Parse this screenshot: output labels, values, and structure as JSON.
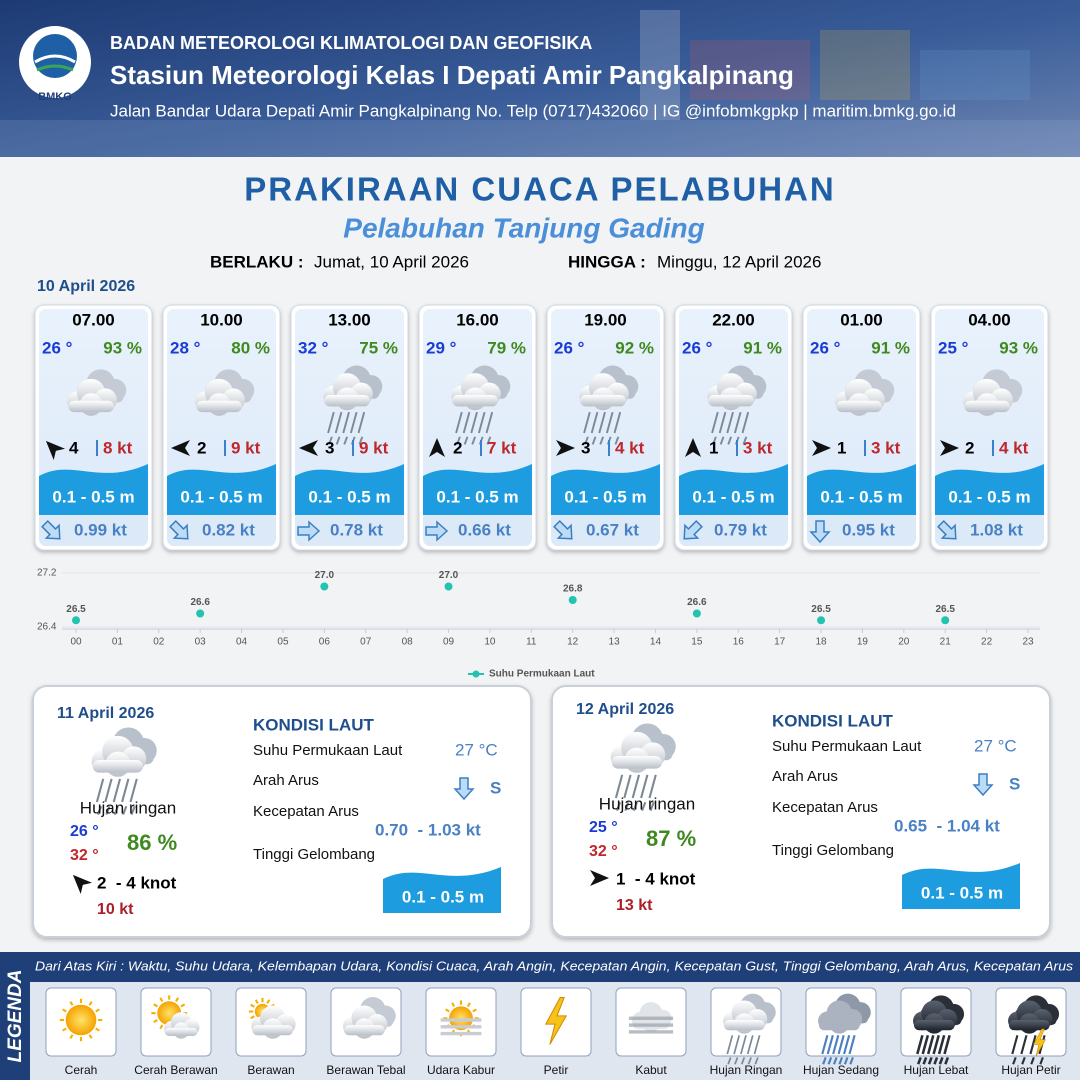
{
  "header": {
    "logo": "BMKG",
    "agency": "BADAN METEOROLOGI KLIMATOLOGI DAN GEOFISIKA",
    "station": "Stasiun Meteorologi Kelas I Depati Amir Pangkalpinang",
    "contact": "Jalan Bandar Udara Depati Amir Pangkalpinang No. Telp (0717)432060 | IG @infobmkgpkp | maritim.bmkg.go.id"
  },
  "title": "PRAKIRAAN CUACA PELABUHAN",
  "subtitle": "Pelabuhan Tanjung Gading",
  "validity": {
    "from_label": "BERLAKU :",
    "from": "Jumat, 10 April 2026",
    "to_label": "HINGGA :",
    "to": "Minggu, 12 April 2026"
  },
  "day1": {
    "date": "10 April 2026",
    "forecasts": [
      {
        "time": "07.00",
        "temp": "26 °",
        "humidity": "93 %",
        "icon": "berawan-tebal",
        "wind_heading": 315,
        "wind_speed": "4",
        "gust": "8 kt",
        "wave": "0.1 - 0.5 m",
        "current_heading": 135,
        "current_speed": "0.99 kt"
      },
      {
        "time": "10.00",
        "temp": "28 °",
        "humidity": "80 %",
        "icon": "berawan-tebal",
        "wind_heading": 270,
        "wind_speed": "2",
        "gust": "9 kt",
        "wave": "0.1 - 0.5 m",
        "current_heading": 135,
        "current_speed": "0.82 kt"
      },
      {
        "time": "13.00",
        "temp": "32 °",
        "humidity": "75 %",
        "icon": "hujan-ringan",
        "wind_heading": 270,
        "wind_speed": "3",
        "gust": "9 kt",
        "wave": "0.1 - 0.5 m",
        "current_heading": 90,
        "current_speed": "0.78 kt"
      },
      {
        "time": "16.00",
        "temp": "29 °",
        "humidity": "79 %",
        "icon": "hujan-ringan",
        "wind_heading": 0,
        "wind_speed": "2",
        "gust": "7 kt",
        "wave": "0.1 - 0.5 m",
        "current_heading": 90,
        "current_speed": "0.66 kt"
      },
      {
        "time": "19.00",
        "temp": "26 °",
        "humidity": "92 %",
        "icon": "hujan-ringan",
        "wind_heading": 90,
        "wind_speed": "3",
        "gust": "4 kt",
        "wave": "0.1 - 0.5 m",
        "current_heading": 135,
        "current_speed": "0.67 kt"
      },
      {
        "time": "22.00",
        "temp": "26 °",
        "humidity": "91 %",
        "icon": "hujan-ringan",
        "wind_heading": 0,
        "wind_speed": "1",
        "gust": "3 kt",
        "wave": "0.1 - 0.5 m",
        "current_heading": 225,
        "current_speed": "0.79 kt"
      },
      {
        "time": "01.00",
        "temp": "26 °",
        "humidity": "91 %",
        "icon": "berawan-tebal",
        "wind_heading": 90,
        "wind_speed": "1",
        "gust": "3 kt",
        "wave": "0.1 - 0.5 m",
        "current_heading": 180,
        "current_speed": "0.95 kt"
      },
      {
        "time": "04.00",
        "temp": "25 °",
        "humidity": "93 %",
        "icon": "berawan-tebal",
        "wind_heading": 90,
        "wind_speed": "2",
        "gust": "4 kt",
        "wave": "0.1 - 0.5 m",
        "current_heading": 135,
        "current_speed": "1.08 kt"
      }
    ]
  },
  "sst_chart": {
    "type": "scatter",
    "x": [
      0,
      3,
      6,
      9,
      12,
      15,
      18,
      21
    ],
    "series": [
      {
        "name": "Suhu Permukaan Laut",
        "color": "#22c3b0",
        "values": [
          26.5,
          26.6,
          27,
          27,
          26.8,
          26.6,
          26.5,
          26.5
        ],
        "value_labels": [
          "26.5",
          "26.6",
          "27.0",
          "27.0",
          "26.8",
          "26.6",
          "26.5",
          "26.5"
        ]
      }
    ],
    "xlim": [
      0,
      23
    ],
    "xticks": [
      {
        "value": 0,
        "label": "00"
      },
      {
        "value": 1,
        "label": "01"
      },
      {
        "value": 2,
        "label": "02"
      },
      {
        "value": 3,
        "label": "03"
      },
      {
        "value": 4,
        "label": "04"
      },
      {
        "value": 5,
        "label": "05"
      },
      {
        "value": 6,
        "label": "06"
      },
      {
        "value": 7,
        "label": "07"
      },
      {
        "value": 8,
        "label": "08"
      },
      {
        "value": 9,
        "label": "09"
      },
      10,
      11,
      12,
      13,
      14,
      15,
      16,
      17,
      18,
      19,
      20,
      21,
      22,
      23
    ],
    "ylim": [
      26.4,
      27.2
    ],
    "yticks": [
      26.4,
      27.2
    ],
    "grid": true
  },
  "days": [
    {
      "date": "11 April 2026",
      "icon": "hujan-ringan",
      "weather": "Hujan ringan",
      "temp_min": "26 °",
      "temp_max": "32 °",
      "humidity": "86 %",
      "wind_heading": 315,
      "wind": "2  - 4 knot",
      "gust": "10 kt",
      "sea": {
        "title": "KONDISI LAUT",
        "sst_label": "Suhu Permukaan Laut",
        "sst": "27 °C",
        "current_dir_label": "Arah Arus",
        "current_heading": 180,
        "current_dir": "S",
        "current_speed_label": "Kecepatan Arus",
        "current_speed": "0.70  - 1.03 kt",
        "wave_label": "Tinggi Gelombang",
        "wave": "0.1 - 0.5 m"
      }
    },
    {
      "date": "12 April 2026",
      "icon": "hujan-ringan",
      "weather": "Hujan ringan",
      "temp_min": "25 °",
      "temp_max": "32 °",
      "humidity": "87 %",
      "wind_heading": 90,
      "wind": "1  - 4 knot",
      "gust": "13 kt",
      "sea": {
        "title": "KONDISI LAUT",
        "sst_label": "Suhu Permukaan Laut",
        "sst": "27 °C",
        "current_dir_label": "Arah Arus",
        "current_heading": 180,
        "current_dir": "S",
        "current_speed_label": "Kecepatan Arus",
        "current_speed": "0.65  - 1.04 kt",
        "wave_label": "Tinggi Gelombang",
        "wave": "0.1 - 0.5 m"
      }
    }
  ],
  "legend": {
    "title": "LEGENDA",
    "description": "Dari Atas Kiri : Waktu, Suhu Udara, Kelembapan Udara, Kondisi Cuaca, Arah Angin, Kecepatan Angin, Kecepatan Gust, Tinggi Gelombang, Arah Arus, Kecepatan Arus",
    "items": [
      {
        "label": "Cerah",
        "icon": "cerah"
      },
      {
        "label": "Cerah Berawan",
        "icon": "cerah-berawan"
      },
      {
        "label": "Berawan",
        "icon": "berawan"
      },
      {
        "label": "Berawan Tebal",
        "icon": "berawan-tebal"
      },
      {
        "label": "Udara Kabur",
        "icon": "udara-kabur"
      },
      {
        "label": "Petir",
        "icon": "petir"
      },
      {
        "label": "Kabut",
        "icon": "kabut"
      },
      {
        "label": "Hujan Ringan",
        "icon": "hujan-ringan"
      },
      {
        "label": "Hujan Sedang",
        "icon": "hujan-sedang"
      },
      {
        "label": "Hujan Lebat",
        "icon": "hujan-lebat"
      },
      {
        "label": "Hujan Petir",
        "icon": "hujan-petir"
      }
    ]
  }
}
